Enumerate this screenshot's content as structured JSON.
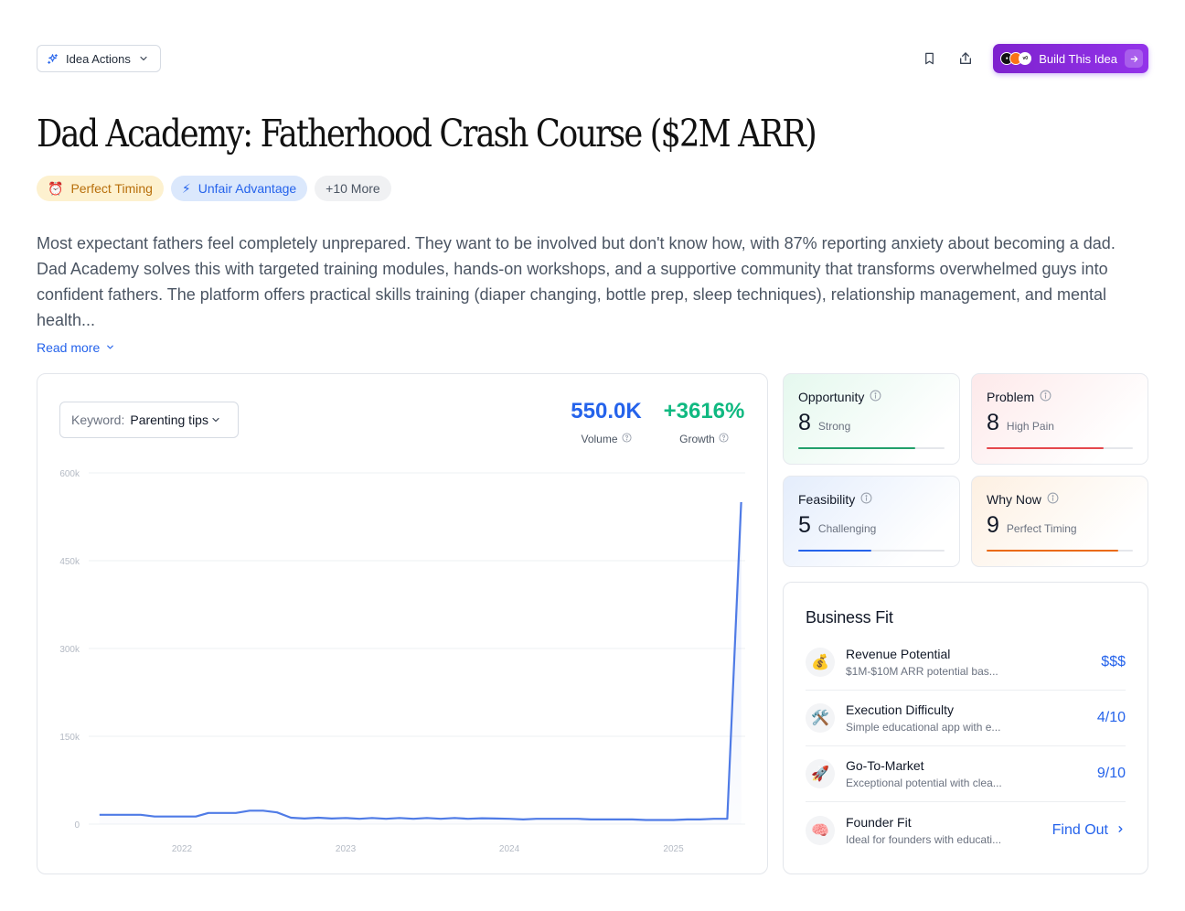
{
  "header": {
    "idea_actions_label": "Idea Actions",
    "build_label": "Build This Idea"
  },
  "title": "Dad Academy: Fatherhood Crash Course ($2M ARR)",
  "tags": [
    {
      "icon": "⏰",
      "label": "Perfect Timing"
    },
    {
      "icon": "⚡",
      "label": "Unfair Advantage"
    },
    {
      "label": "+10 More"
    }
  ],
  "description": "Most expectant fathers feel completely unprepared. They want to be involved but don't know how, with 87% reporting anxiety about becoming a dad. Dad Academy solves this with targeted training modules, hands-on workshops, and a supportive community that transforms overwhelmed guys into confident fathers. The platform offers practical skills training (diaper changing, bottle prep, sleep techniques), relationship management, and mental health...",
  "read_more": "Read more",
  "trend": {
    "keyword_label": "Keyword:",
    "keyword_value": "Parenting tips",
    "volume_value": "550.0K",
    "volume_label": "Volume",
    "growth_value": "+3616%",
    "growth_label": "Growth"
  },
  "chart_data": {
    "type": "area",
    "title": "",
    "xlabel": "",
    "ylabel": "",
    "ylim": [
      0,
      600000
    ],
    "y_ticks": [
      0,
      150000,
      300000,
      450000,
      600000
    ],
    "y_tick_labels": [
      "0",
      "150k",
      "300k",
      "450k",
      "600k"
    ],
    "x_ticks": [
      "2022",
      "2023",
      "2024",
      "2025"
    ],
    "x_tick_dates": [
      "2022-01-01",
      "2023-01-01",
      "2024-01-01",
      "2025-01-01"
    ],
    "series": [
      {
        "color": "#4f7be6",
        "x": [
          "2021-07-01",
          "2021-08-01",
          "2021-09-01",
          "2021-10-01",
          "2021-11-01",
          "2021-12-01",
          "2022-01-01",
          "2022-02-01",
          "2022-03-01",
          "2022-04-01",
          "2022-05-01",
          "2022-06-01",
          "2022-07-01",
          "2022-08-01",
          "2022-09-01",
          "2022-10-01",
          "2022-11-01",
          "2022-12-01",
          "2023-01-01",
          "2023-02-01",
          "2023-03-01",
          "2023-04-01",
          "2023-05-01",
          "2023-06-01",
          "2023-07-01",
          "2023-08-01",
          "2023-09-01",
          "2023-10-01",
          "2023-11-01",
          "2023-12-01",
          "2024-01-01",
          "2024-02-01",
          "2024-03-01",
          "2024-04-01",
          "2024-05-01",
          "2024-06-01",
          "2024-07-01",
          "2024-08-01",
          "2024-09-01",
          "2024-10-01",
          "2024-11-01",
          "2024-12-01",
          "2025-01-01",
          "2025-02-01",
          "2025-03-01",
          "2025-04-01",
          "2025-05-01",
          "2025-06-01"
        ],
        "values": [
          16000,
          16000,
          16000,
          16000,
          13000,
          13000,
          13000,
          13000,
          19000,
          19000,
          19000,
          23000,
          23000,
          20000,
          11000,
          9500,
          11000,
          9500,
          10500,
          9000,
          10500,
          9000,
          10500,
          9000,
          10500,
          9000,
          10500,
          9000,
          10000,
          9500,
          9000,
          8000,
          9000,
          9000,
          9000,
          9000,
          8000,
          8000,
          8000,
          8000,
          7000,
          7000,
          7000,
          8000,
          8000,
          9000,
          9000,
          550000
        ]
      }
    ]
  },
  "scores": [
    {
      "label": "Opportunity",
      "value": "8",
      "note": "Strong",
      "color": "#22a06b",
      "fill": 0.8
    },
    {
      "label": "Problem",
      "value": "8",
      "note": "High Pain",
      "color": "#e5484d",
      "fill": 0.8
    },
    {
      "label": "Feasibility",
      "value": "5",
      "note": "Challenging",
      "color": "#2563eb",
      "fill": 0.5
    },
    {
      "label": "Why Now",
      "value": "9",
      "note": "Perfect Timing",
      "color": "#ea6a12",
      "fill": 0.9
    }
  ],
  "business_fit": {
    "title": "Business Fit",
    "items": [
      {
        "emoji": "💰",
        "title": "Revenue Potential",
        "desc": "$1M-$10M ARR potential bas...",
        "score": "$$$"
      },
      {
        "emoji": "🛠️",
        "title": "Execution Difficulty",
        "desc": "Simple educational app with e...",
        "score": "4/10"
      },
      {
        "emoji": "🚀",
        "title": "Go-To-Market",
        "desc": "Exceptional potential with clea...",
        "score": "9/10"
      },
      {
        "emoji": "🧠",
        "title": "Founder Fit",
        "desc": "Ideal for founders with educati...",
        "link": "Find Out"
      }
    ]
  }
}
